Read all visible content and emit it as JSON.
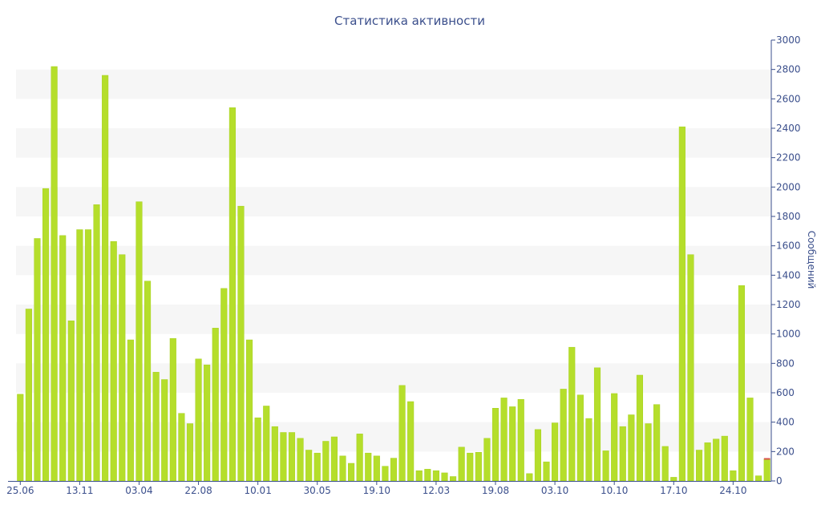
{
  "chart_data": {
    "type": "bar",
    "title": "Статистика активности",
    "ylabel": "Сообщений",
    "xlabel": "",
    "ylim": [
      0,
      3000
    ],
    "y_ticks": [
      0,
      200,
      400,
      600,
      800,
      1000,
      1200,
      1400,
      1600,
      1800,
      2000,
      2200,
      2400,
      2600,
      2800,
      3000
    ],
    "y_axis_position": "right",
    "grid": "alternating horizontal bands",
    "x_tick_labels": [
      {
        "label": "25.06",
        "index": 0
      },
      {
        "label": "13.11",
        "index": 7
      },
      {
        "label": "03.04",
        "index": 14
      },
      {
        "label": "22.08",
        "index": 21
      },
      {
        "label": "10.01",
        "index": 28
      },
      {
        "label": "30.05",
        "index": 35
      },
      {
        "label": "19.10",
        "index": 42
      },
      {
        "label": "12.03",
        "index": 49
      },
      {
        "label": "19.08",
        "index": 56
      },
      {
        "label": "03.10",
        "index": 63
      },
      {
        "label": "10.10",
        "index": 70
      },
      {
        "label": "17.10",
        "index": 77
      },
      {
        "label": "24.10",
        "index": 84
      }
    ],
    "values": [
      590,
      1170,
      1650,
      1990,
      2820,
      1670,
      1090,
      1710,
      1710,
      1880,
      2760,
      1630,
      1540,
      960,
      1900,
      1360,
      740,
      690,
      970,
      460,
      390,
      830,
      790,
      1040,
      1310,
      2540,
      1870,
      960,
      430,
      510,
      370,
      330,
      330,
      290,
      210,
      190,
      270,
      300,
      170,
      120,
      320,
      190,
      170,
      100,
      155,
      650,
      540,
      70,
      80,
      70,
      55,
      30,
      230,
      190,
      195,
      290,
      495,
      565,
      505,
      555,
      50,
      350,
      130,
      395,
      625,
      910,
      585,
      425,
      770,
      205,
      595,
      370,
      450,
      720,
      390,
      520,
      235,
      25,
      2410,
      1540,
      210,
      260,
      285,
      305,
      70,
      1330,
      565,
      35,
      150
    ],
    "colors": {
      "bar": "#b5de2b",
      "bar_stroke": "#a7d020",
      "band": "#f6f6f6",
      "axis": "#3b4f8c",
      "last_bar_marker": "#d9534f"
    }
  }
}
